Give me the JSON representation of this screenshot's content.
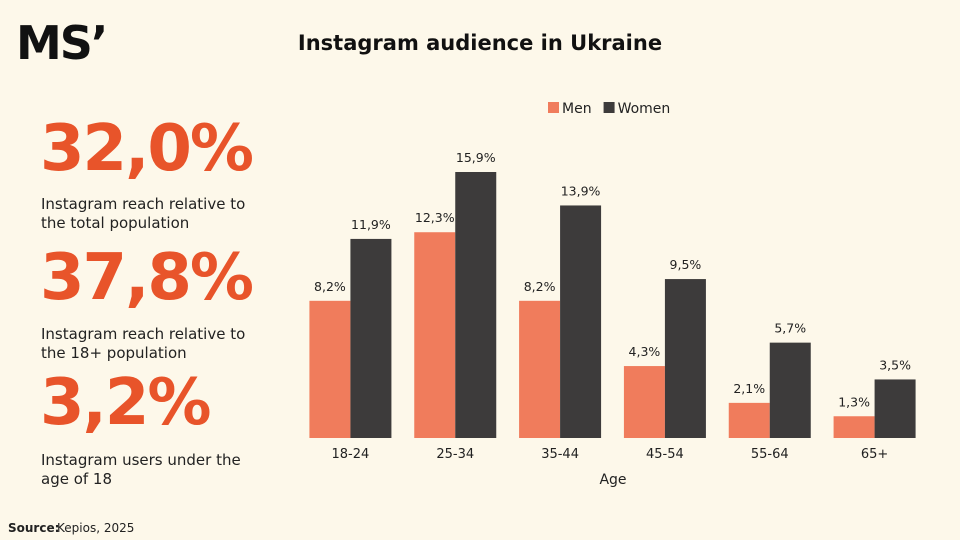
{
  "logo": "MS’",
  "stats": [
    {
      "value": "32,0%",
      "label": [
        "Instagram reach relative to",
        "the total population"
      ]
    },
    {
      "value": "37,8%",
      "label": [
        "Instagram reach relative to",
        "the 18+ population"
      ]
    },
    {
      "value": "3,2%",
      "label": [
        "Instagram users under the",
        "age of 18"
      ]
    }
  ],
  "source": {
    "label": "Source:",
    "text": "Kepios, 2025"
  },
  "chart_data": {
    "type": "bar",
    "title": "Instagram audience in Ukraine",
    "x_label": "Age",
    "categories": [
      "18-24",
      "25-34",
      "35-44",
      "45-54",
      "55-64",
      "65+"
    ],
    "series": [
      {
        "name": "Men",
        "color": "#f07c5c",
        "values": [
          8.2,
          12.3,
          8.2,
          4.3,
          2.1,
          1.3
        ],
        "value_labels": [
          "8,2%",
          "12,3%",
          "8,2%",
          "4,3%",
          "2,1%",
          "1,3%"
        ]
      },
      {
        "name": "Women",
        "color": "#3d3b3b",
        "values": [
          11.9,
          15.9,
          13.9,
          9.5,
          5.7,
          3.5
        ],
        "value_labels": [
          "11,9%",
          "15,9%",
          "13,9%",
          "9,5%",
          "5,7%",
          "3,5%"
        ]
      }
    ],
    "legend": "top"
  }
}
